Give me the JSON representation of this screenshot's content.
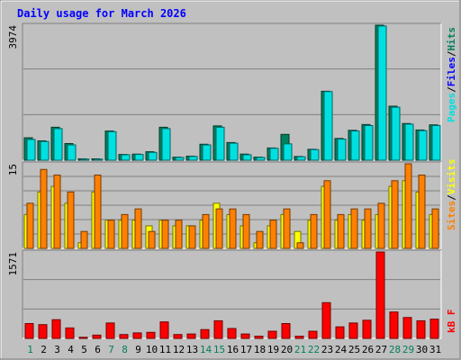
{
  "chart_data": [
    {
      "type": "bar",
      "title": "Daily usage for March 2026",
      "categories": [
        "1",
        "2",
        "3",
        "4",
        "5",
        "6",
        "7",
        "8",
        "9",
        "10",
        "11",
        "12",
        "13",
        "14",
        "15",
        "16",
        "17",
        "18",
        "19",
        "20",
        "21",
        "22",
        "23",
        "24",
        "25",
        "26",
        "27",
        "28",
        "29",
        "30",
        "31"
      ],
      "weekend_days": [
        "1",
        "7",
        "8",
        "14",
        "15",
        "21",
        "22",
        "28",
        "29"
      ],
      "ymax_label": "3974",
      "ylim": [
        0,
        3974
      ],
      "series": [
        {
          "name": "Hits",
          "color": "#00805c",
          "values": [
            660,
            570,
            970,
            490,
            40,
            40,
            860,
            170,
            180,
            250,
            970,
            90,
            120,
            470,
            1010,
            520,
            180,
            90,
            360,
            760,
            110,
            320,
            2030,
            640,
            880,
            1050,
            3974,
            1590,
            1080,
            890,
            1040
          ]
        },
        {
          "name": "Files",
          "color": "#0000ff",
          "values": [
            0,
            0,
            0,
            0,
            0,
            0,
            0,
            0,
            0,
            0,
            0,
            0,
            0,
            0,
            0,
            0,
            0,
            0,
            0,
            0,
            0,
            0,
            0,
            0,
            0,
            0,
            0,
            0,
            0,
            0,
            0
          ]
        },
        {
          "name": "Pages",
          "color": "#00e0e0",
          "values": [
            610,
            550,
            930,
            450,
            30,
            30,
            840,
            160,
            170,
            230,
            930,
            80,
            110,
            450,
            970,
            500,
            160,
            80,
            350,
            480,
            100,
            310,
            2020,
            620,
            860,
            1020,
            3950,
            1560,
            1060,
            870,
            1020
          ]
        }
      ],
      "legend_title": "Pages / Files / Hits",
      "legend_separator": "/"
    },
    {
      "type": "bar",
      "categories": [
        "1",
        "2",
        "3",
        "4",
        "5",
        "6",
        "7",
        "8",
        "9",
        "10",
        "11",
        "12",
        "13",
        "14",
        "15",
        "16",
        "17",
        "18",
        "19",
        "20",
        "21",
        "22",
        "23",
        "24",
        "25",
        "26",
        "27",
        "28",
        "29",
        "30",
        "31"
      ],
      "ymax_label": "15",
      "ylim": [
        0,
        15
      ],
      "series": [
        {
          "name": "Visits",
          "color": "#ffff00",
          "values": [
            6,
            10,
            11,
            8,
            1,
            10,
            5,
            5,
            5,
            4,
            5,
            4,
            4,
            5,
            8,
            6,
            4,
            1,
            4,
            6,
            3,
            5,
            11,
            5,
            6,
            5,
            6,
            11,
            12,
            10,
            6
          ]
        },
        {
          "name": "Sites",
          "color": "#ff8000",
          "values": [
            8,
            14,
            13,
            10,
            3,
            13,
            5,
            6,
            7,
            3,
            5,
            5,
            4,
            6,
            7,
            7,
            6,
            3,
            5,
            7,
            1,
            6,
            12,
            6,
            7,
            7,
            8,
            12,
            15,
            13,
            7
          ]
        }
      ],
      "legend_title": "Sites / Visits",
      "legend_separator": "/"
    },
    {
      "type": "bar",
      "categories": [
        "1",
        "2",
        "3",
        "4",
        "5",
        "6",
        "7",
        "8",
        "9",
        "10",
        "11",
        "12",
        "13",
        "14",
        "15",
        "16",
        "17",
        "18",
        "19",
        "20",
        "21",
        "22",
        "23",
        "24",
        "25",
        "26",
        "27",
        "28",
        "29",
        "30",
        "31"
      ],
      "ymax_label": "1571",
      "ylim": [
        0,
        1571
      ],
      "series": [
        {
          "name": "kB F",
          "color": "#ff0000",
          "values": [
            270,
            250,
            340,
            190,
            20,
            60,
            280,
            70,
            100,
            110,
            300,
            70,
            80,
            160,
            320,
            180,
            80,
            40,
            130,
            270,
            40,
            130,
            650,
            210,
            280,
            330,
            1571,
            480,
            380,
            320,
            350
          ]
        }
      ],
      "legend_title": "kB F"
    }
  ],
  "colors": {
    "background": "#c0c0c0",
    "title": "#0000ff",
    "weekend": "#00805c",
    "weekday": "#000000"
  }
}
